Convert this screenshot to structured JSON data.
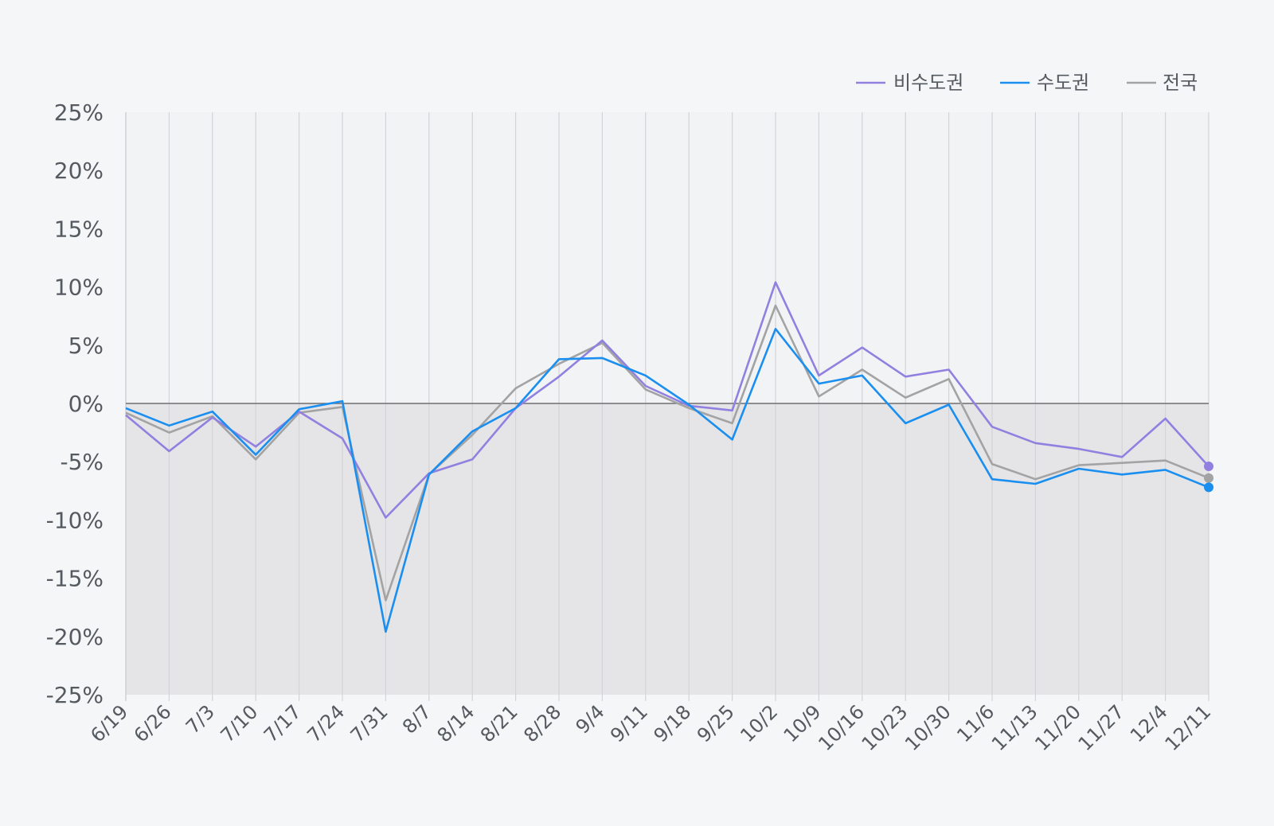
{
  "chart_data": {
    "type": "line",
    "title": "",
    "xlabel": "",
    "ylabel": "",
    "categories": [
      "6/19",
      "6/26",
      "7/3",
      "7/10",
      "7/17",
      "7/24",
      "7/31",
      "8/7",
      "8/14",
      "8/21",
      "8/28",
      "9/4",
      "9/11",
      "9/18",
      "9/25",
      "10/2",
      "10/9",
      "10/16",
      "10/23",
      "10/30",
      "11/6",
      "11/13",
      "11/20",
      "11/27",
      "12/4",
      "12/11"
    ],
    "yticks": [
      "25%",
      "20%",
      "15%",
      "10%",
      "5%",
      "0%",
      "-5%",
      "-10%",
      "-15%",
      "-20%",
      "-25%"
    ],
    "ylim": [
      -25,
      25
    ],
    "y_unit": "%",
    "grid": "vertical",
    "zero_line": true,
    "negative_region_shaded": true,
    "legend_position": "top-right",
    "legend": [
      "비수도권",
      "수도권",
      "전국"
    ],
    "series": [
      {
        "name": "비수도권",
        "color": "#9180e0",
        "values": [
          -1.0,
          -4.1,
          -1.2,
          -3.7,
          -0.7,
          -3.0,
          -9.8,
          -6.0,
          -4.8,
          -0.4,
          2.3,
          5.4,
          1.5,
          -0.2,
          -0.6,
          10.4,
          2.4,
          4.8,
          2.3,
          2.9,
          -2.0,
          -3.4,
          -3.9,
          -4.6,
          -1.3,
          -5.4
        ]
      },
      {
        "name": "수도권",
        "color": "#1a8ff0",
        "values": [
          -0.4,
          -1.9,
          -0.7,
          -4.4,
          -0.5,
          0.2,
          -19.6,
          -6.1,
          -2.4,
          -0.4,
          3.8,
          3.9,
          2.4,
          -0.1,
          -3.1,
          6.4,
          1.7,
          2.4,
          -1.7,
          -0.1,
          -6.5,
          -6.9,
          -5.6,
          -6.1,
          -5.7,
          -7.2
        ]
      },
      {
        "name": "전국",
        "color": "#a3a3a3",
        "values": [
          -0.8,
          -2.5,
          -1.1,
          -4.8,
          -0.8,
          -0.3,
          -16.9,
          -6.1,
          -2.7,
          1.3,
          3.4,
          5.2,
          1.2,
          -0.4,
          -1.7,
          8.4,
          0.6,
          2.9,
          0.5,
          2.1,
          -5.2,
          -6.5,
          -5.3,
          -5.1,
          -4.9,
          -6.4
        ]
      }
    ]
  }
}
